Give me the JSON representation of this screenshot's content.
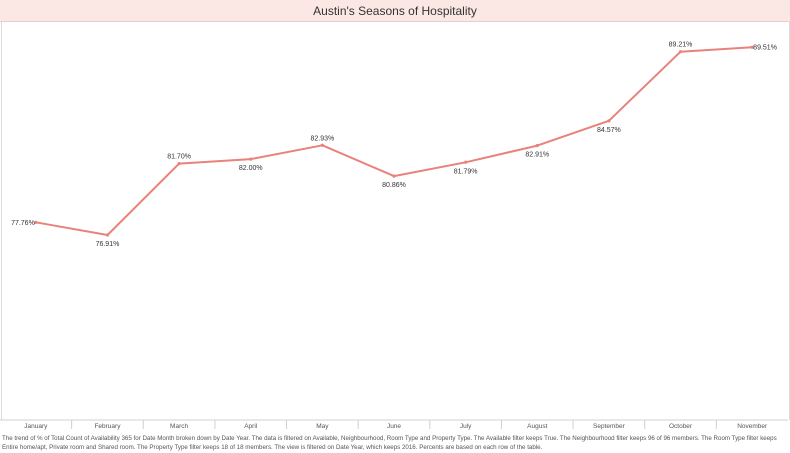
{
  "title": "Austin's Seasons of Hospitality",
  "caption": "The trend of % of Total Count of Availability 365 for Date Month broken down by Date Year. The data is filtered on Available, Neighbourhood, Room Type and Property Type. The Available filter keeps True. The Neighbourhood filter keeps 96 of 96 members. The Room Type filter keeps Entire home/apt, Private room and Shared room. The Property Type filter keeps 18 of 18 members. The view is filtered on Date Year, which keeps 2016. Percents are based on each row of the table.",
  "colors": {
    "line": "#e8827a",
    "title_bg": "#fbe8e4",
    "axis": "#d0d0d0"
  },
  "chart_data": {
    "type": "line",
    "categories": [
      "January",
      "February",
      "March",
      "April",
      "May",
      "June",
      "July",
      "August",
      "September",
      "October",
      "November"
    ],
    "values": [
      77.76,
      76.91,
      81.7,
      82.0,
      82.93,
      80.86,
      81.79,
      82.91,
      84.57,
      89.21,
      89.51
    ],
    "labels": [
      "77.76%",
      "76.91%",
      "81.70%",
      "82.00%",
      "82.93%",
      "80.86%",
      "81.79%",
      "82.91%",
      "84.57%",
      "89.21%",
      "89.51%"
    ],
    "ylim": [
      64.5,
      91.2
    ],
    "grid": false,
    "xlabel": "",
    "ylabel": ""
  }
}
